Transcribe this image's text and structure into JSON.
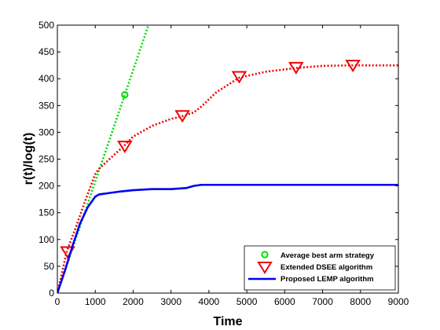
{
  "chart_data": {
    "type": "line",
    "xlabel": "Time",
    "ylabel": "r(t)/log(t)",
    "xlim": [
      0,
      9000
    ],
    "ylim": [
      0,
      500
    ],
    "xticks": [
      0,
      1000,
      2000,
      3000,
      4000,
      5000,
      6000,
      7000,
      8000,
      9000
    ],
    "yticks": [
      0,
      50,
      100,
      150,
      200,
      250,
      300,
      350,
      400,
      450,
      500
    ],
    "grid": false,
    "legend_position": "bottom-right",
    "series": [
      {
        "name": "Average best arm strategy",
        "color": "#00dd00",
        "line_style": "dotted",
        "marker": "circle",
        "x": [
          0,
          250,
          500,
          750,
          1000,
          1250,
          1500,
          1750,
          2000,
          2250,
          2500
        ],
        "y": [
          0,
          52,
          104,
          156,
          208,
          260,
          312,
          364,
          416,
          468,
          520
        ],
        "marker_points": {
          "x": [
            1780
          ],
          "y": [
            370
          ]
        }
      },
      {
        "name": "Extended DSEE algorithm",
        "color": "#ee0000",
        "line_style": "dotted",
        "marker": "triangle-down",
        "x": [
          0,
          250,
          500,
          750,
          1000,
          1100,
          1300,
          1500,
          1750,
          2000,
          2500,
          3000,
          3300,
          3600,
          3800,
          4200,
          4800,
          5500,
          6300,
          7000,
          7800,
          8500,
          9000
        ],
        "y": [
          0,
          78,
          125,
          175,
          222,
          232,
          245,
          258,
          274,
          292,
          312,
          325,
          330,
          337,
          348,
          375,
          402,
          413,
          420,
          424,
          425,
          425,
          425
        ],
        "marker_points": {
          "x": [
            270,
            1780,
            3300,
            4800,
            6300,
            7800
          ],
          "y": [
            77,
            274,
            331,
            404,
            421,
            425
          ]
        }
      },
      {
        "name": "Proposed LEMP algorithm",
        "color": "#0000ee",
        "line_style": "solid",
        "marker": "none",
        "x": [
          0,
          200,
          400,
          600,
          800,
          1000,
          1100,
          1300,
          1600,
          2000,
          2500,
          3000,
          3400,
          3600,
          3800,
          4500,
          6000,
          7500,
          9000
        ],
        "y": [
          0,
          42,
          88,
          130,
          160,
          180,
          184,
          186,
          189,
          192,
          194,
          194,
          196,
          200,
          202,
          202,
          202,
          202,
          202
        ]
      }
    ]
  }
}
